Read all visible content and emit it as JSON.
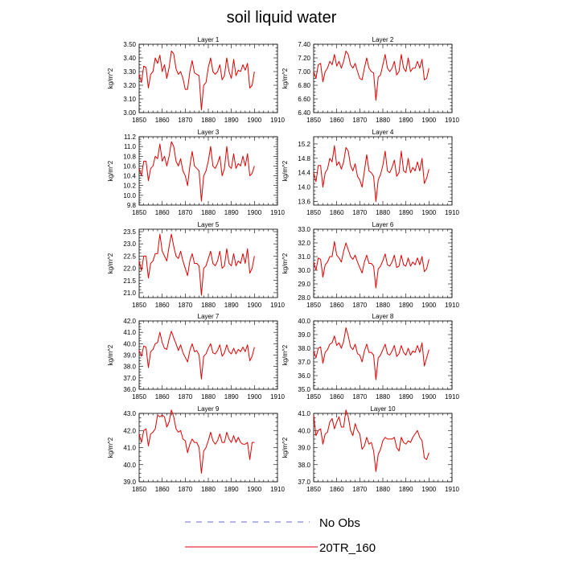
{
  "title": "soil liquid water",
  "legend": {
    "entries": [
      {
        "label": "No Obs",
        "color": "#6a6acf",
        "style": "dashed"
      },
      {
        "label": "20TR_160",
        "color": "#e00000",
        "style": "solid"
      }
    ]
  },
  "chart_data": [
    {
      "type": "line",
      "title": "Layer 1",
      "ylabel": "kg/m^2",
      "xlim": [
        1850,
        1910
      ],
      "ylim": [
        3.0,
        3.5
      ],
      "yticks": [
        3.0,
        3.1,
        3.2,
        3.3,
        3.4,
        3.5
      ],
      "yticklabels": [
        "3.00",
        "3.10",
        "3.20",
        "3.30",
        "3.40",
        "3.50"
      ],
      "series": [
        {
          "name": "20TR_160",
          "values": [
            3.28,
            3.22,
            3.34,
            3.33,
            3.18,
            3.28,
            3.3,
            3.4,
            3.36,
            3.42,
            3.3,
            3.35,
            3.25,
            3.33,
            3.45,
            3.43,
            3.32,
            3.28,
            3.3,
            3.25,
            3.17,
            3.17,
            3.3,
            3.38,
            3.29,
            3.28,
            3.27,
            3.02,
            3.2,
            3.22,
            3.33,
            3.4,
            3.3,
            3.28,
            3.3,
            3.35,
            3.24,
            3.27,
            3.4,
            3.3,
            3.25,
            3.39,
            3.27,
            3.31,
            3.3,
            3.35,
            3.31,
            3.36,
            3.18,
            3.2,
            3.3
          ]
        }
      ]
    },
    {
      "type": "line",
      "title": "Layer 2",
      "ylabel": "kg/m^2",
      "xlim": [
        1850,
        1910
      ],
      "ylim": [
        6.4,
        7.4
      ],
      "yticks": [
        6.4,
        6.6,
        6.8,
        7.0,
        7.2,
        7.4
      ],
      "yticklabels": [
        "6.40",
        "6.60",
        "6.80",
        "7.00",
        "7.20",
        "7.40"
      ],
      "series": [
        {
          "name": "20TR_160",
          "values": [
            7.0,
            6.9,
            7.1,
            7.12,
            6.85,
            7.0,
            7.05,
            7.15,
            7.1,
            7.25,
            7.08,
            7.15,
            7.05,
            7.15,
            7.3,
            7.25,
            7.1,
            7.05,
            7.12,
            7.0,
            6.9,
            6.88,
            7.05,
            7.2,
            7.05,
            7.0,
            6.98,
            6.58,
            6.92,
            6.95,
            7.1,
            7.25,
            7.05,
            7.0,
            7.05,
            7.15,
            6.95,
            7.0,
            7.25,
            7.05,
            7.0,
            7.2,
            7.0,
            7.05,
            7.05,
            7.15,
            7.05,
            7.18,
            6.88,
            6.9,
            7.05
          ]
        }
      ]
    },
    {
      "type": "line",
      "title": "Layer 3",
      "ylabel": "kg/m^2",
      "xlim": [
        1850,
        1910
      ],
      "ylim": [
        9.8,
        11.2
      ],
      "yticks": [
        9.8,
        10.0,
        10.2,
        10.4,
        10.6,
        10.8,
        11.0,
        11.2
      ],
      "yticklabels": [
        "9.8",
        "10.0",
        "10.2",
        "10.4",
        "10.6",
        "10.8",
        "11.0",
        "11.2"
      ],
      "series": [
        {
          "name": "20TR_160",
          "values": [
            10.55,
            10.4,
            10.7,
            10.7,
            10.3,
            10.55,
            10.6,
            10.8,
            10.75,
            11.05,
            10.7,
            10.8,
            10.6,
            10.8,
            11.1,
            11.0,
            10.7,
            10.6,
            10.75,
            10.5,
            10.4,
            10.2,
            10.6,
            10.9,
            10.6,
            10.55,
            10.5,
            9.88,
            10.4,
            10.5,
            10.7,
            11.0,
            10.6,
            10.55,
            10.65,
            10.8,
            10.4,
            10.55,
            11.0,
            10.6,
            10.55,
            10.85,
            10.55,
            10.65,
            10.6,
            10.8,
            10.6,
            10.85,
            10.4,
            10.45,
            10.6
          ]
        }
      ]
    },
    {
      "type": "line",
      "title": "Layer 4",
      "ylabel": "kg/m^2",
      "xlim": [
        1850,
        1910
      ],
      "ylim": [
        13.5,
        15.4
      ],
      "yticks": [
        13.6,
        14.0,
        14.4,
        14.8,
        15.2
      ],
      "yticklabels": [
        "13.6",
        "14.0",
        "14.4",
        "14.8",
        "15.2"
      ],
      "series": [
        {
          "name": "20TR_160",
          "values": [
            14.4,
            14.15,
            14.6,
            14.6,
            14.0,
            14.4,
            14.5,
            14.8,
            14.7,
            15.15,
            14.6,
            14.7,
            14.5,
            14.7,
            15.1,
            15.0,
            14.6,
            14.45,
            14.65,
            14.3,
            14.2,
            14.0,
            14.45,
            14.9,
            14.45,
            14.4,
            14.3,
            13.6,
            14.2,
            14.35,
            14.6,
            15.0,
            14.45,
            14.4,
            14.55,
            14.75,
            14.3,
            14.4,
            15.0,
            14.45,
            14.4,
            14.8,
            14.4,
            14.55,
            14.45,
            14.7,
            14.45,
            14.8,
            14.1,
            14.25,
            14.5
          ]
        }
      ]
    },
    {
      "type": "line",
      "title": "Layer 5",
      "ylabel": "kg/m^2",
      "xlim": [
        1850,
        1910
      ],
      "ylim": [
        20.8,
        23.6
      ],
      "yticks": [
        21.0,
        21.5,
        22.0,
        22.5,
        23.0,
        23.5
      ],
      "yticklabels": [
        "21.0",
        "21.5",
        "22.0",
        "22.5",
        "23.0",
        "23.5"
      ],
      "series": [
        {
          "name": "20TR_160",
          "values": [
            22.3,
            21.9,
            22.5,
            22.5,
            21.6,
            22.2,
            22.3,
            22.6,
            22.6,
            23.4,
            22.7,
            22.5,
            22.3,
            22.9,
            23.4,
            22.9,
            22.5,
            22.4,
            22.7,
            22.3,
            22.0,
            21.7,
            22.3,
            22.6,
            22.2,
            22.2,
            22.1,
            20.9,
            22.0,
            22.1,
            22.4,
            22.7,
            22.2,
            22.1,
            22.3,
            22.7,
            22.0,
            22.1,
            22.8,
            22.2,
            22.1,
            22.6,
            22.1,
            22.3,
            22.2,
            22.6,
            22.2,
            22.8,
            21.8,
            22.0,
            22.5
          ]
        }
      ]
    },
    {
      "type": "line",
      "title": "Layer 6",
      "ylabel": "kg/m^2",
      "xlim": [
        1850,
        1910
      ],
      "ylim": [
        28.0,
        33.0
      ],
      "yticks": [
        28.0,
        29.0,
        30.0,
        31.0,
        32.0,
        33.0
      ],
      "yticklabels": [
        "28.0",
        "29.0",
        "30.0",
        "31.0",
        "32.0",
        "33.0"
      ],
      "series": [
        {
          "name": "20TR_160",
          "values": [
            30.6,
            30.0,
            30.9,
            30.8,
            29.5,
            30.4,
            30.6,
            31.0,
            31.0,
            32.1,
            31.1,
            30.9,
            30.6,
            31.4,
            32.0,
            31.5,
            31.0,
            30.8,
            31.1,
            30.6,
            30.2,
            29.8,
            30.6,
            31.1,
            30.5,
            30.5,
            30.3,
            28.7,
            30.1,
            30.3,
            30.7,
            31.2,
            30.4,
            30.3,
            30.6,
            31.1,
            30.2,
            30.3,
            31.1,
            30.4,
            30.3,
            30.9,
            30.3,
            30.6,
            30.4,
            30.9,
            30.4,
            31.0,
            29.9,
            30.1,
            30.8
          ]
        }
      ]
    },
    {
      "type": "line",
      "title": "Layer 7",
      "ylabel": "kg/m^2",
      "xlim": [
        1850,
        1910
      ],
      "ylim": [
        36.0,
        42.0
      ],
      "yticks": [
        36.0,
        37.0,
        38.0,
        39.0,
        40.0,
        41.0,
        42.0
      ],
      "yticklabels": [
        "36.0",
        "37.0",
        "38.0",
        "39.0",
        "40.0",
        "41.0",
        "42.0"
      ],
      "series": [
        {
          "name": "20TR_160",
          "values": [
            39.4,
            38.9,
            39.8,
            39.7,
            37.9,
            39.3,
            39.5,
            40.0,
            40.1,
            41.0,
            40.1,
            39.6,
            39.5,
            40.4,
            41.1,
            40.5,
            40.0,
            39.4,
            39.9,
            39.2,
            38.8,
            38.4,
            39.4,
            40.0,
            39.3,
            39.4,
            39.0,
            36.9,
            38.9,
            39.1,
            39.6,
            40.0,
            39.2,
            39.1,
            39.4,
            39.9,
            38.9,
            39.2,
            39.9,
            39.3,
            39.1,
            39.6,
            39.1,
            39.5,
            39.3,
            39.7,
            39.3,
            39.9,
            38.5,
            38.9,
            39.7
          ]
        }
      ]
    },
    {
      "type": "line",
      "title": "Layer 8",
      "ylabel": "kg/m^2",
      "xlim": [
        1850,
        1910
      ],
      "ylim": [
        35.0,
        40.0
      ],
      "yticks": [
        35.0,
        36.0,
        37.0,
        38.0,
        39.0,
        40.0
      ],
      "yticklabels": [
        "35.0",
        "36.0",
        "37.0",
        "38.0",
        "39.0",
        "40.0"
      ],
      "series": [
        {
          "name": "20TR_160",
          "values": [
            37.8,
            37.3,
            38.0,
            38.1,
            36.9,
            37.7,
            37.9,
            38.3,
            38.4,
            38.9,
            38.2,
            38.4,
            38.0,
            38.5,
            39.5,
            38.9,
            38.1,
            37.9,
            38.3,
            37.6,
            37.5,
            37.0,
            37.8,
            38.3,
            37.7,
            37.7,
            37.5,
            35.7,
            37.3,
            37.5,
            37.9,
            38.3,
            37.6,
            37.5,
            37.8,
            38.2,
            37.4,
            37.6,
            38.2,
            37.7,
            37.5,
            38.0,
            37.5,
            37.8,
            37.7,
            38.2,
            37.7,
            38.4,
            36.7,
            37.3,
            37.9
          ]
        }
      ]
    },
    {
      "type": "line",
      "title": "Layer 9",
      "ylabel": "kg/m^2",
      "xlim": [
        1850,
        1910
      ],
      "ylim": [
        39.0,
        43.0
      ],
      "yticks": [
        39.0,
        40.0,
        41.0,
        42.0,
        43.0
      ],
      "yticklabels": [
        "39.0",
        "40.0",
        "41.0",
        "42.0",
        "43.0"
      ],
      "series": [
        {
          "name": "20TR_160",
          "values": [
            41.8,
            41.3,
            42.0,
            42.1,
            41.1,
            41.8,
            41.9,
            42.1,
            42.9,
            42.8,
            42.9,
            42.8,
            42.2,
            42.5,
            43.2,
            42.8,
            42.1,
            41.9,
            42.0,
            41.5,
            41.4,
            40.7,
            41.2,
            41.5,
            41.3,
            41.3,
            41.0,
            39.5,
            40.8,
            41.0,
            41.4,
            41.9,
            41.4,
            41.2,
            41.4,
            41.8,
            41.3,
            41.3,
            41.9,
            41.5,
            41.3,
            41.7,
            41.3,
            41.6,
            41.3,
            41.2,
            41.2,
            41.3,
            40.3,
            41.3,
            41.3
          ]
        }
      ]
    },
    {
      "type": "line",
      "title": "Layer 10",
      "ylabel": "kg/m^2",
      "xlim": [
        1850,
        1910
      ],
      "ylim": [
        37.0,
        41.0
      ],
      "yticks": [
        37.0,
        38.0,
        39.0,
        40.0,
        41.0
      ],
      "yticklabels": [
        "37.0",
        "38.0",
        "39.0",
        "40.0",
        "41.0"
      ],
      "series": [
        {
          "name": "20TR_160",
          "values": [
            40.9,
            39.7,
            40.0,
            40.1,
            39.2,
            39.8,
            39.9,
            40.5,
            40.7,
            40.1,
            40.5,
            40.8,
            40.2,
            40.2,
            41.2,
            40.8,
            40.0,
            39.7,
            40.4,
            40.0,
            39.8,
            38.9,
            39.1,
            39.6,
            39.2,
            39.3,
            38.8,
            37.6,
            38.6,
            38.9,
            39.4,
            39.6,
            39.5,
            39.5,
            39.5,
            39.6,
            39.0,
            38.8,
            39.6,
            39.3,
            39.2,
            39.4,
            39.3,
            39.6,
            39.8,
            40.0,
            39.6,
            39.4,
            38.4,
            38.3,
            38.7
          ]
        }
      ]
    }
  ]
}
